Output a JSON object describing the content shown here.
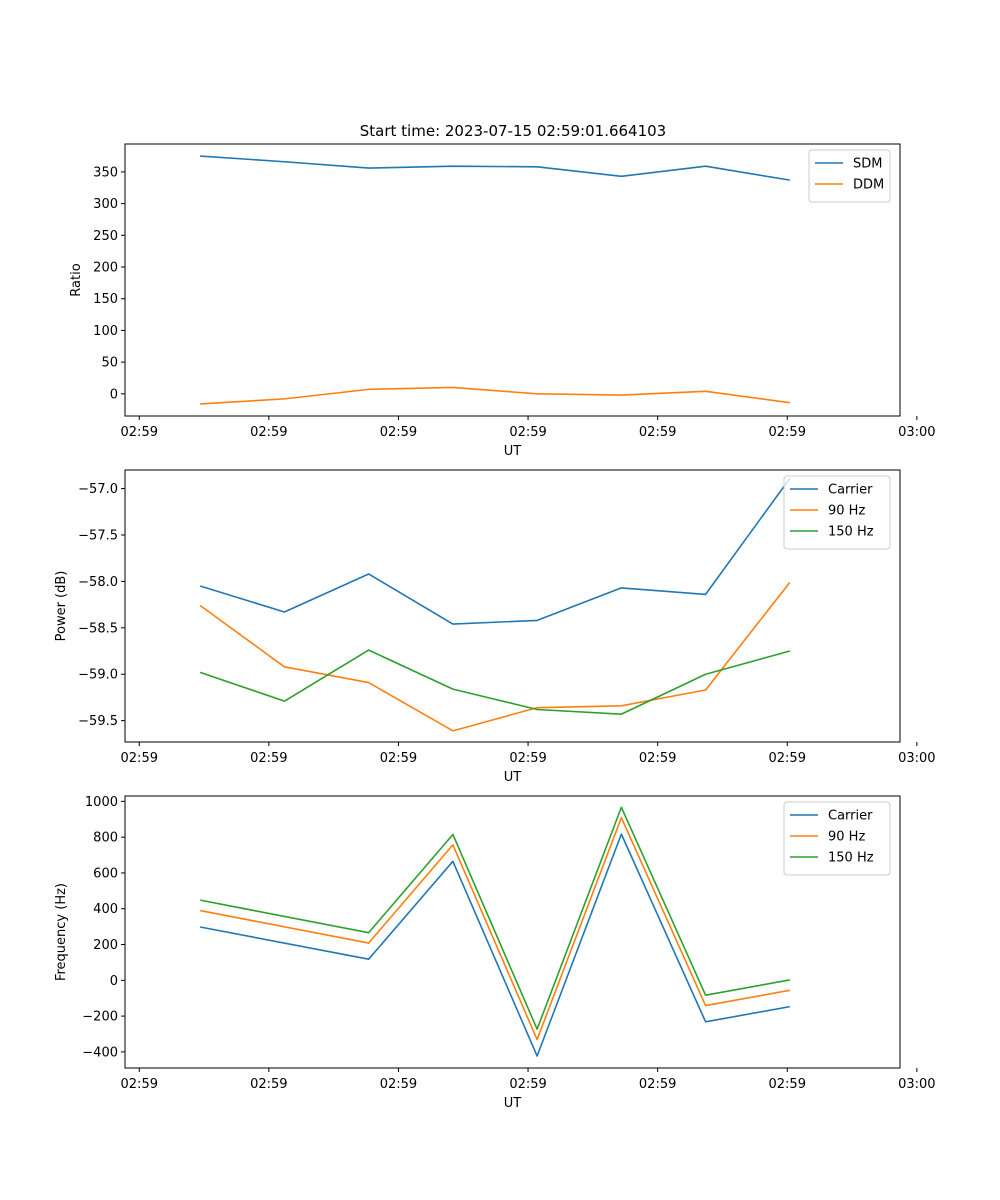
{
  "figure": {
    "title": "Start time: 2023-07-15 02:59:01.664103"
  },
  "chart_data": [
    {
      "type": "line",
      "title": "Start time: 2023-07-15 02:59:01.664103",
      "xlabel": "UT",
      "ylabel": "Ratio",
      "xlim": [
        -0.48,
        5.5
      ],
      "ylim": [
        -35,
        394
      ],
      "x_ticks": [
        -0.37,
        0.63,
        1.63,
        2.63,
        3.63,
        4.63,
        5.63
      ],
      "x_tick_labels": [
        "02:59",
        "02:59",
        "02:59",
        "02:59",
        "02:59",
        "02:59",
        "03:00"
      ],
      "y_ticks": [
        0,
        50,
        100,
        150,
        200,
        250,
        300,
        350
      ],
      "y_tick_labels": [
        "0",
        "50",
        "100",
        "150",
        "200",
        "250",
        "300",
        "350"
      ],
      "x": [
        0.1,
        0.75,
        1.4,
        2.05,
        2.7,
        3.35,
        4.0,
        4.65
      ],
      "legend_position": "top-right",
      "series": [
        {
          "name": "SDM",
          "color": "#1f77b4",
          "values": [
            375,
            366,
            356,
            359,
            358,
            343,
            359,
            337
          ]
        },
        {
          "name": "DDM",
          "color": "#ff7f0e",
          "values": [
            -16,
            -8,
            7,
            10,
            0,
            -2,
            4,
            -14
          ]
        }
      ]
    },
    {
      "type": "line",
      "title": "",
      "xlabel": "UT",
      "ylabel": "Power (dB)",
      "xlim": [
        -0.48,
        5.5
      ],
      "ylim": [
        -59.73,
        -56.8
      ],
      "x_ticks": [
        -0.37,
        0.63,
        1.63,
        2.63,
        3.63,
        4.63,
        5.63
      ],
      "x_tick_labels": [
        "02:59",
        "02:59",
        "02:59",
        "02:59",
        "02:59",
        "02:59",
        "03:00"
      ],
      "y_ticks": [
        -59.5,
        -59.0,
        -58.5,
        -58.0,
        -57.5,
        -57.0
      ],
      "y_tick_labels": [
        "−59.5",
        "−59.0",
        "−58.5",
        "−58.0",
        "−57.5",
        "−57.0"
      ],
      "x": [
        0.1,
        0.75,
        1.4,
        2.05,
        2.7,
        3.35,
        4.0,
        4.65
      ],
      "legend_position": "top-right",
      "series": [
        {
          "name": "Carrier",
          "color": "#1f77b4",
          "values": [
            -58.05,
            -58.33,
            -57.92,
            -58.46,
            -58.42,
            -58.07,
            -58.14,
            -56.89
          ]
        },
        {
          "name": "90 Hz",
          "color": "#ff7f0e",
          "values": [
            -58.26,
            -58.92,
            -59.09,
            -59.61,
            -59.36,
            -59.34,
            -59.17,
            -58.01
          ]
        },
        {
          "name": "150 Hz",
          "color": "#2ca02c",
          "values": [
            -58.98,
            -59.29,
            -58.74,
            -59.16,
            -59.38,
            -59.43,
            -59.0,
            -58.75
          ]
        }
      ]
    },
    {
      "type": "line",
      "title": "",
      "xlabel": "UT",
      "ylabel": "Frequency (Hz)",
      "xlim": [
        -0.48,
        5.5
      ],
      "ylim": [
        -490,
        1030
      ],
      "x_ticks": [
        -0.37,
        0.63,
        1.63,
        2.63,
        3.63,
        4.63,
        5.63
      ],
      "x_tick_labels": [
        "02:59",
        "02:59",
        "02:59",
        "02:59",
        "02:59",
        "02:59",
        "03:00"
      ],
      "y_ticks": [
        -400,
        -200,
        0,
        200,
        400,
        600,
        800,
        1000
      ],
      "y_tick_labels": [
        "−400",
        "−200",
        "0",
        "200",
        "400",
        "600",
        "800",
        "1000"
      ],
      "x": [
        0.1,
        1.4,
        2.05,
        2.7,
        3.35,
        4.0,
        4.65
      ],
      "legend_position": "top-right",
      "series": [
        {
          "name": "Carrier",
          "color": "#1f77b4",
          "values": [
            298,
            118,
            665,
            -423,
            817,
            -232,
            -147
          ]
        },
        {
          "name": "90 Hz",
          "color": "#ff7f0e",
          "values": [
            390,
            208,
            757,
            -331,
            909,
            -141,
            -56
          ]
        },
        {
          "name": "150 Hz",
          "color": "#2ca02c",
          "values": [
            448,
            266,
            815,
            -273,
            967,
            -83,
            2
          ]
        }
      ]
    }
  ]
}
